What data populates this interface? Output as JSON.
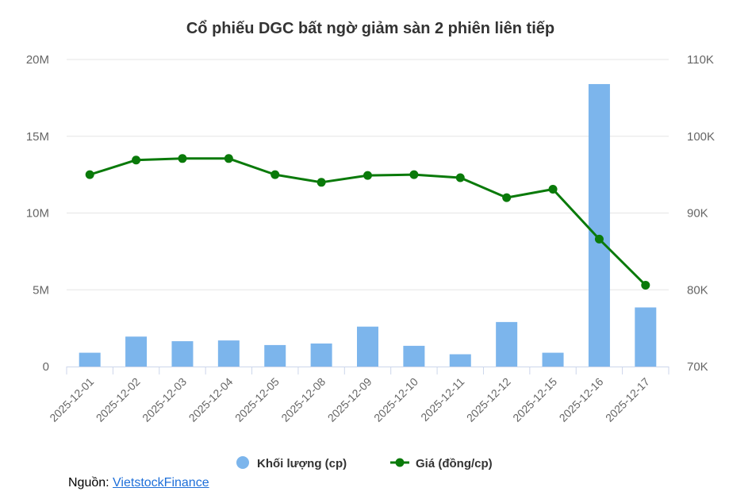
{
  "chart_data": {
    "type": "bar+line",
    "title": "Cổ phiếu DGC bất ngờ giảm sàn 2 phiên liên tiếp",
    "categories": [
      "2025-12-01",
      "2025-12-02",
      "2025-12-03",
      "2025-12-04",
      "2025-12-05",
      "2025-12-08",
      "2025-12-09",
      "2025-12-10",
      "2025-12-11",
      "2025-12-12",
      "2025-12-15",
      "2025-12-16",
      "2025-12-17"
    ],
    "y_left": {
      "ylim": [
        0,
        20000000
      ],
      "ticks": [
        0,
        5000000,
        10000000,
        15000000,
        20000000
      ],
      "tick_labels": [
        "0",
        "5M",
        "10M",
        "15M",
        "20M"
      ]
    },
    "y_right": {
      "ylim": [
        70000,
        110000
      ],
      "ticks": [
        70000,
        80000,
        90000,
        100000,
        110000
      ],
      "tick_labels": [
        "70K",
        "80K",
        "90K",
        "100K",
        "110K"
      ]
    },
    "grid": true,
    "legend_position": "bottom-center",
    "series": [
      {
        "name": "Khối lượng (cp)",
        "type": "bar",
        "axis": "left",
        "color": "#7cb5ec",
        "values": [
          900000,
          1950000,
          1650000,
          1700000,
          1400000,
          1500000,
          2600000,
          1350000,
          800000,
          2900000,
          900000,
          18400000,
          3850000
        ]
      },
      {
        "name": "Giá (đồng/cp)",
        "type": "line",
        "axis": "right",
        "color": "#0a7a0a",
        "values": [
          95000,
          96900,
          97100,
          97100,
          95000,
          94000,
          94900,
          95000,
          94600,
          92000,
          93100,
          86600,
          80600
        ]
      }
    ]
  },
  "source": {
    "label": "Nguồn: ",
    "link_text": "VietstockFinance"
  }
}
